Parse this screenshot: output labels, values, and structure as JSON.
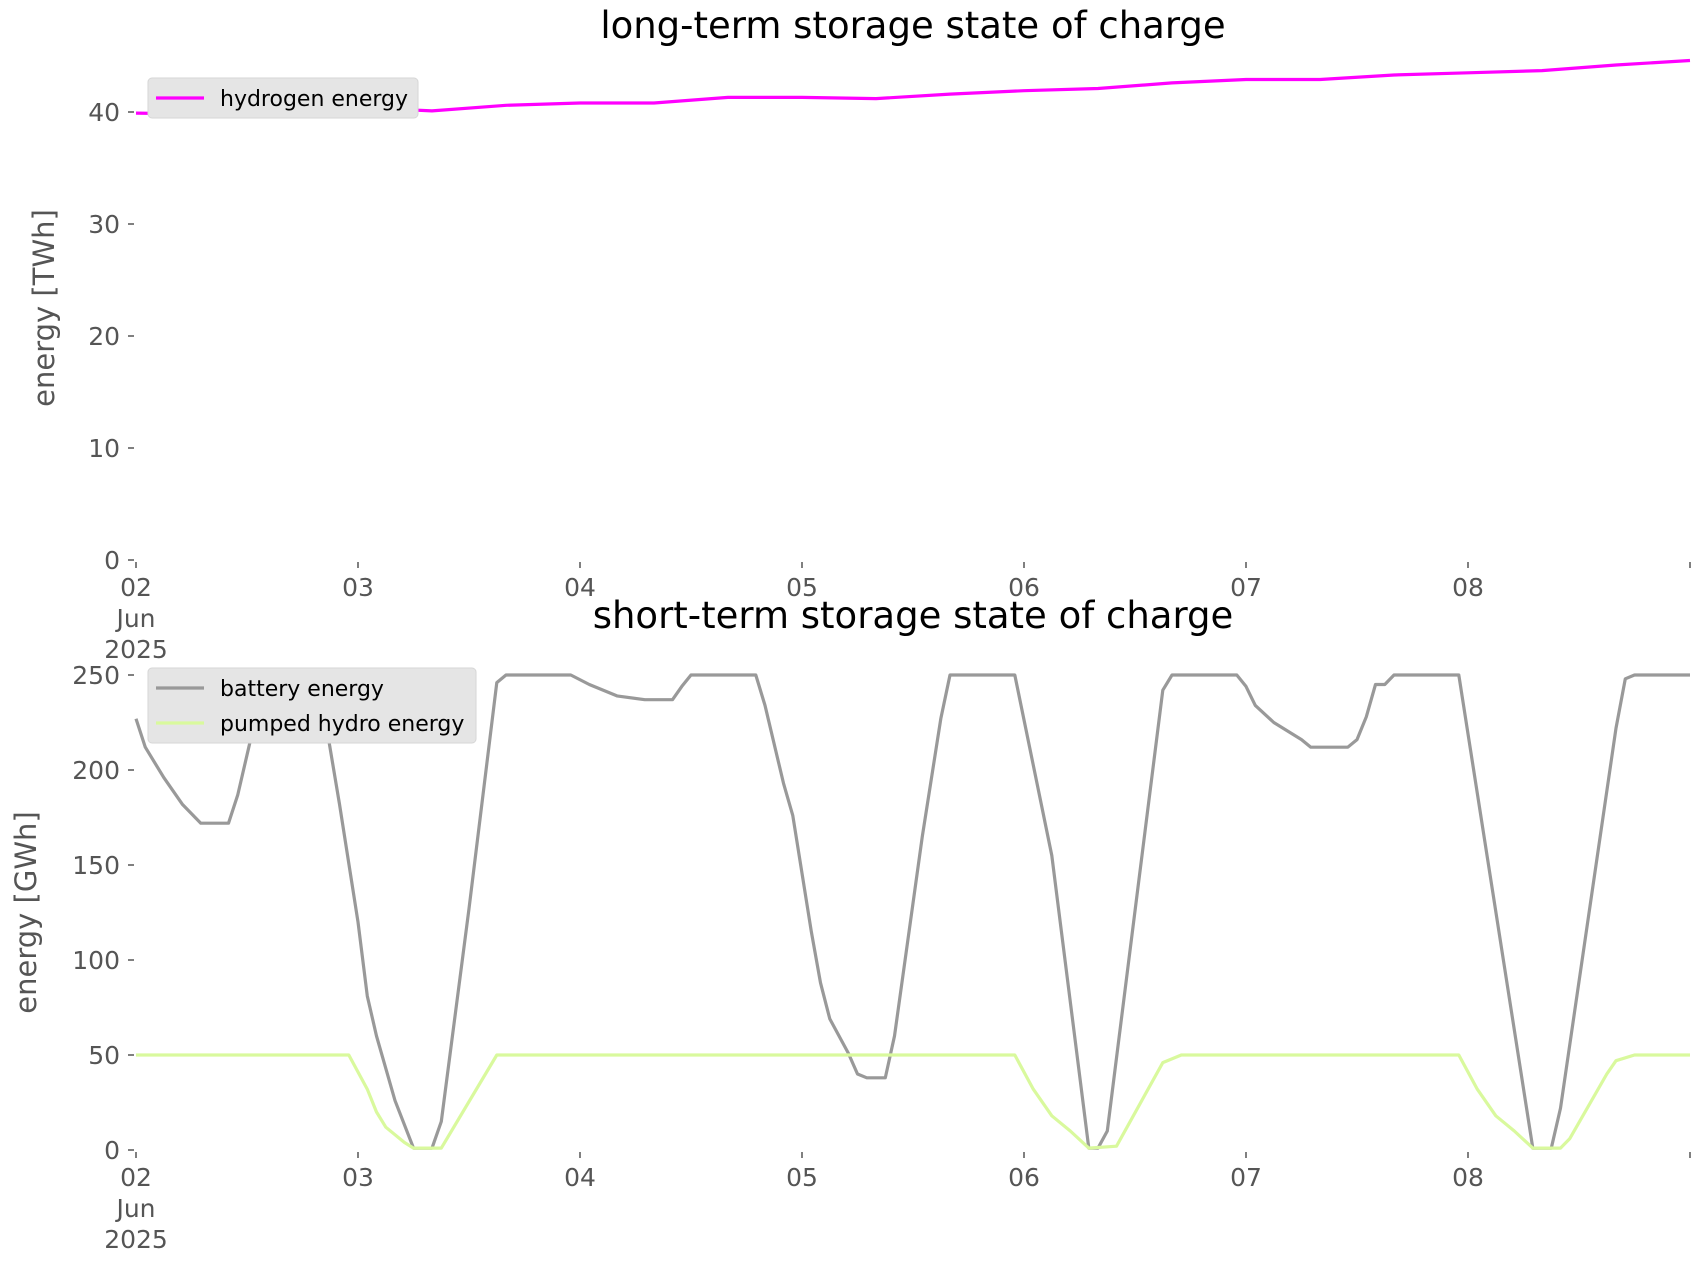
{
  "chart_data": [
    {
      "type": "line",
      "title": "long-term storage state of charge",
      "xlabel": "",
      "ylabel": "energy [TWh]",
      "ylim": [
        0,
        45
      ],
      "xlim": [
        "2025-06-02 00:00",
        "2025-06-09 00:00"
      ],
      "yticks": [
        "0",
        "10",
        "20",
        "30",
        "40"
      ],
      "xtick_labels": [
        {
          "x": "2025-06-02",
          "lines": [
            "02",
            "Jun",
            "2025"
          ]
        },
        {
          "x": "2025-06-03",
          "lines": [
            "03"
          ]
        },
        {
          "x": "2025-06-04",
          "lines": [
            "04"
          ]
        },
        {
          "x": "2025-06-05",
          "lines": [
            "05"
          ]
        },
        {
          "x": "2025-06-06",
          "lines": [
            "06"
          ]
        },
        {
          "x": "2025-06-07",
          "lines": [
            "07"
          ]
        },
        {
          "x": "2025-06-08",
          "lines": [
            "08"
          ]
        }
      ],
      "grid": false,
      "legend": "top-left",
      "series": [
        {
          "name": "hydrogen energy",
          "color": "#ff00ff",
          "points": [
            [
              "2025-06-02 00:00",
              39.9
            ],
            [
              "2025-06-02 08:00",
              39.8
            ],
            [
              "2025-06-02 16:00",
              40.1
            ],
            [
              "2025-06-03 00:00",
              40.4
            ],
            [
              "2025-06-03 08:00",
              40.1
            ],
            [
              "2025-06-03 16:00",
              40.6
            ],
            [
              "2025-06-04 00:00",
              40.8
            ],
            [
              "2025-06-04 08:00",
              40.8
            ],
            [
              "2025-06-04 16:00",
              41.3
            ],
            [
              "2025-06-05 00:00",
              41.3
            ],
            [
              "2025-06-05 08:00",
              41.2
            ],
            [
              "2025-06-05 16:00",
              41.6
            ],
            [
              "2025-06-06 00:00",
              41.9
            ],
            [
              "2025-06-06 08:00",
              42.1
            ],
            [
              "2025-06-06 16:00",
              42.6
            ],
            [
              "2025-06-07 00:00",
              42.9
            ],
            [
              "2025-06-07 08:00",
              42.9
            ],
            [
              "2025-06-07 16:00",
              43.3
            ],
            [
              "2025-06-08 00:00",
              43.5
            ],
            [
              "2025-06-08 08:00",
              43.7
            ],
            [
              "2025-06-08 16:00",
              44.2
            ],
            [
              "2025-06-09 00:00",
              44.6
            ]
          ]
        }
      ]
    },
    {
      "type": "line",
      "title": "short-term storage state of charge",
      "xlabel": "",
      "ylabel": "energy [GWh]",
      "ylim": [
        0,
        250
      ],
      "xlim": [
        "2025-06-02 00:00",
        "2025-06-09 00:00"
      ],
      "yticks": [
        "0",
        "50",
        "100",
        "150",
        "200",
        "250"
      ],
      "xtick_labels": [
        {
          "x": "2025-06-02",
          "lines": [
            "02",
            "Jun",
            "2025"
          ]
        },
        {
          "x": "2025-06-03",
          "lines": [
            "03"
          ]
        },
        {
          "x": "2025-06-04",
          "lines": [
            "04"
          ]
        },
        {
          "x": "2025-06-05",
          "lines": [
            "05"
          ]
        },
        {
          "x": "2025-06-06",
          "lines": [
            "06"
          ]
        },
        {
          "x": "2025-06-07",
          "lines": [
            "07"
          ]
        },
        {
          "x": "2025-06-08",
          "lines": [
            "08"
          ]
        }
      ],
      "grid": false,
      "legend": "top-left",
      "series": [
        {
          "name": "battery energy",
          "color": "#999999",
          "points": [
            [
              "2025-06-02 00:00",
              227
            ],
            [
              "2025-06-02 01:00",
              212
            ],
            [
              "2025-06-02 03:00",
              196
            ],
            [
              "2025-06-02 05:00",
              182
            ],
            [
              "2025-06-02 07:00",
              172
            ],
            [
              "2025-06-02 10:00",
              172
            ],
            [
              "2025-06-02 11:00",
              187
            ],
            [
              "2025-06-02 13:00",
              229
            ],
            [
              "2025-06-02 14:00",
              247
            ],
            [
              "2025-06-02 15:00",
              250
            ],
            [
              "2025-06-02 19:00",
              250
            ],
            [
              "2025-06-02 20:00",
              240
            ],
            [
              "2025-06-02 22:00",
              182
            ],
            [
              "2025-06-03 00:00",
              120
            ],
            [
              "2025-06-03 01:00",
              81
            ],
            [
              "2025-06-03 02:00",
              60
            ],
            [
              "2025-06-03 04:00",
              26
            ],
            [
              "2025-06-03 06:00",
              1
            ],
            [
              "2025-06-03 08:00",
              1
            ],
            [
              "2025-06-03 09:00",
              15
            ],
            [
              "2025-06-03 12:00",
              127
            ],
            [
              "2025-06-03 15:00",
              246
            ],
            [
              "2025-06-03 16:00",
              250
            ],
            [
              "2025-06-03 23:00",
              250
            ],
            [
              "2025-06-04 01:00",
              245
            ],
            [
              "2025-06-04 04:00",
              239
            ],
            [
              "2025-06-04 07:00",
              237
            ],
            [
              "2025-06-04 10:00",
              237
            ],
            [
              "2025-06-04 11:00",
              244
            ],
            [
              "2025-06-04 12:00",
              250
            ],
            [
              "2025-06-04 19:00",
              250
            ],
            [
              "2025-06-04 20:00",
              234
            ],
            [
              "2025-06-04 22:00",
              193
            ],
            [
              "2025-06-04 23:00",
              176
            ],
            [
              "2025-06-05 01:00",
              115
            ],
            [
              "2025-06-05 02:00",
              88
            ],
            [
              "2025-06-05 03:00",
              69
            ],
            [
              "2025-06-05 05:00",
              51
            ],
            [
              "2025-06-05 06:00",
              40
            ],
            [
              "2025-06-05 07:00",
              38
            ],
            [
              "2025-06-05 09:00",
              38
            ],
            [
              "2025-06-05 10:00",
              60
            ],
            [
              "2025-06-05 13:00",
              165
            ],
            [
              "2025-06-05 15:00",
              227
            ],
            [
              "2025-06-05 16:00",
              250
            ],
            [
              "2025-06-05 23:00",
              250
            ],
            [
              "2025-06-06 03:00",
              155
            ],
            [
              "2025-06-06 07:00",
              1
            ],
            [
              "2025-06-06 08:00",
              1
            ],
            [
              "2025-06-06 09:00",
              10
            ],
            [
              "2025-06-06 15:00",
              242
            ],
            [
              "2025-06-06 16:00",
              250
            ],
            [
              "2025-06-06 23:00",
              250
            ],
            [
              "2025-06-07 00:00",
              244
            ],
            [
              "2025-06-07 01:00",
              234
            ],
            [
              "2025-06-07 03:00",
              225
            ],
            [
              "2025-06-07 06:00",
              216
            ],
            [
              "2025-06-07 07:00",
              212
            ],
            [
              "2025-06-07 11:00",
              212
            ],
            [
              "2025-06-07 12:00",
              216
            ],
            [
              "2025-06-07 13:00",
              228
            ],
            [
              "2025-06-07 14:00",
              245
            ],
            [
              "2025-06-07 15:00",
              245
            ],
            [
              "2025-06-07 16:00",
              250
            ],
            [
              "2025-06-07 23:00",
              250
            ],
            [
              "2025-06-08 07:00",
              1
            ],
            [
              "2025-06-08 09:00",
              1
            ],
            [
              "2025-06-08 10:00",
              22
            ],
            [
              "2025-06-08 16:00",
              222
            ],
            [
              "2025-06-08 17:00",
              248
            ],
            [
              "2025-06-08 18:00",
              250
            ],
            [
              "2025-06-09 00:00",
              250
            ]
          ]
        },
        {
          "name": "pumped hydro energy",
          "color": "#d9f99d",
          "points": [
            [
              "2025-06-02 00:00",
              50
            ],
            [
              "2025-06-02 23:00",
              50
            ],
            [
              "2025-06-03 01:00",
              32
            ],
            [
              "2025-06-03 02:00",
              20
            ],
            [
              "2025-06-03 03:00",
              12
            ],
            [
              "2025-06-03 05:00",
              4
            ],
            [
              "2025-06-03 06:00",
              1
            ],
            [
              "2025-06-03 09:00",
              1
            ],
            [
              "2025-06-03 15:00",
              50
            ],
            [
              "2025-06-05 23:00",
              50
            ],
            [
              "2025-06-06 01:00",
              32
            ],
            [
              "2025-06-06 03:00",
              18
            ],
            [
              "2025-06-06 05:00",
              10
            ],
            [
              "2025-06-06 07:00",
              1
            ],
            [
              "2025-06-06 10:00",
              2
            ],
            [
              "2025-06-06 15:00",
              46
            ],
            [
              "2025-06-06 17:00",
              50
            ],
            [
              "2025-06-07 23:00",
              50
            ],
            [
              "2025-06-08 01:00",
              32
            ],
            [
              "2025-06-08 03:00",
              18
            ],
            [
              "2025-06-08 05:00",
              10
            ],
            [
              "2025-06-08 07:00",
              1
            ],
            [
              "2025-06-08 10:00",
              1
            ],
            [
              "2025-06-08 11:00",
              6
            ],
            [
              "2025-06-08 15:00",
              40
            ],
            [
              "2025-06-08 16:00",
              47
            ],
            [
              "2025-06-08 18:00",
              50
            ],
            [
              "2025-06-09 00:00",
              50
            ]
          ]
        }
      ]
    }
  ]
}
